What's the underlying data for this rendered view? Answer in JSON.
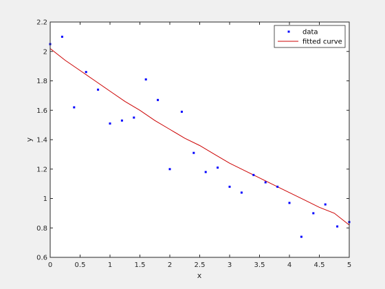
{
  "chart_data": {
    "type": "scatter",
    "xlabel": "x",
    "ylabel": "y",
    "xlim": [
      0,
      5
    ],
    "ylim": [
      0.6,
      2.2
    ],
    "x_ticks": [
      0,
      0.5,
      1,
      1.5,
      2,
      2.5,
      3,
      3.5,
      4,
      4.5,
      5
    ],
    "x_tick_labels": [
      "0",
      "0.5",
      "1",
      "1.5",
      "2",
      "2.5",
      "3",
      "3.5",
      "4",
      "4.5",
      "5"
    ],
    "y_ticks": [
      0.6,
      0.8,
      1,
      1.2,
      1.4,
      1.6,
      1.8,
      2,
      2.2
    ],
    "y_tick_labels": [
      "0.6",
      "0.8",
      "1",
      "1.2",
      "1.4",
      "1.6",
      "1.8",
      "2",
      "2.2"
    ],
    "grid": false,
    "legend_position": "top-right",
    "series": [
      {
        "name": "data",
        "type": "scatter",
        "color": "#0000ff",
        "x": [
          0,
          0.2,
          0.4,
          0.6,
          0.8,
          1.0,
          1.2,
          1.4,
          1.6,
          1.8,
          2.0,
          2.2,
          2.4,
          2.6,
          2.8,
          3.0,
          3.2,
          3.4,
          3.6,
          3.8,
          4.0,
          4.2,
          4.4,
          4.6,
          4.8,
          5.0
        ],
        "y": [
          2.05,
          2.1,
          1.62,
          1.86,
          1.74,
          1.51,
          1.53,
          1.55,
          1.81,
          1.67,
          1.2,
          1.59,
          1.31,
          1.18,
          1.21,
          1.08,
          1.04,
          1.16,
          1.11,
          1.08,
          0.97,
          0.74,
          0.9,
          0.96,
          0.81,
          0.84
        ]
      },
      {
        "name": "fitted curve",
        "type": "line",
        "color": "#cc0000",
        "x": [
          0,
          0.25,
          0.5,
          0.75,
          1.0,
          1.25,
          1.5,
          1.75,
          2.0,
          2.25,
          2.5,
          2.75,
          3.0,
          3.25,
          3.5,
          3.75,
          4.0,
          4.25,
          4.5,
          4.75,
          5.0
        ],
        "y": [
          2.02,
          1.94,
          1.87,
          1.8,
          1.73,
          1.66,
          1.6,
          1.53,
          1.47,
          1.41,
          1.36,
          1.3,
          1.24,
          1.19,
          1.14,
          1.09,
          1.04,
          0.99,
          0.94,
          0.9,
          0.82
        ]
      }
    ]
  }
}
